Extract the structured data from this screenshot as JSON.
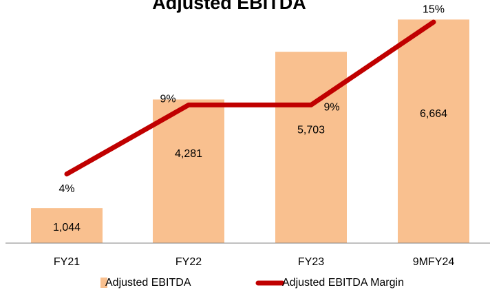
{
  "chart_data": {
    "type": "bar",
    "title": "Adjusted EBITDA",
    "categories": [
      "FY21",
      "FY22",
      "FY23",
      "9MFY24"
    ],
    "ylim": [
      0,
      7000
    ],
    "y2lim": [
      -1,
      16
    ],
    "series": [
      {
        "name": "Adjusted EBITDA",
        "type": "bar",
        "color": "#f9c08f",
        "values": [
          1044,
          4281,
          5703,
          6664
        ],
        "value_labels": [
          "1,044",
          "4,281",
          "5,703",
          "6,664"
        ]
      },
      {
        "name": "Adjusted EBITDA Margin",
        "type": "line",
        "axis": "y2",
        "color": "#c00000",
        "values": [
          4,
          9,
          9,
          15
        ],
        "value_labels": [
          "4%",
          "9%",
          "9%",
          "15%"
        ]
      }
    ]
  }
}
